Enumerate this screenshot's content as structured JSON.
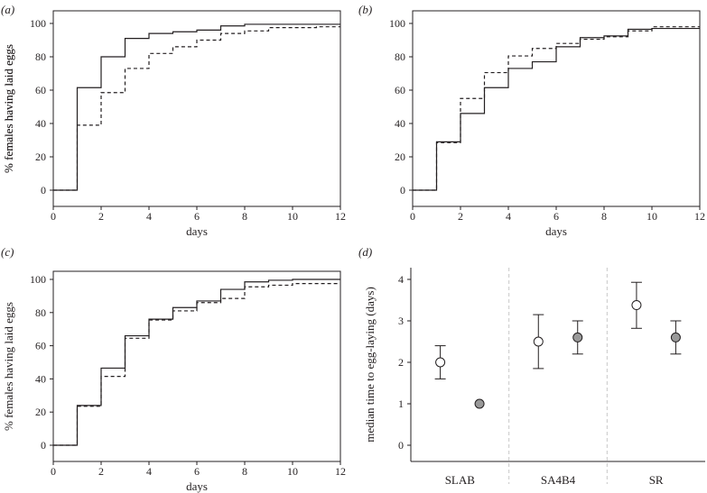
{
  "chart_data": [
    {
      "panel": "(a)",
      "type": "line",
      "step": true,
      "xlabel": "days",
      "ylabel": "% females having laid eggs",
      "xlim": [
        0,
        12
      ],
      "ylim": [
        0,
        100
      ],
      "xticks": [
        0,
        2,
        4,
        6,
        8,
        10,
        12
      ],
      "yticks": [
        0,
        20,
        40,
        60,
        80,
        100
      ],
      "x": [
        0,
        1,
        2,
        3,
        4,
        5,
        6,
        7,
        8,
        9,
        10,
        11,
        12
      ],
      "series": [
        {
          "name": "solid",
          "style": "solid",
          "values": [
            0,
            61.5,
            80,
            91,
            94,
            95,
            96,
            98.5,
            99.5,
            99.5,
            99.5,
            99.5,
            99.5
          ]
        },
        {
          "name": "dashed",
          "style": "dashed",
          "values": [
            0,
            39,
            58.5,
            73,
            82,
            86,
            90,
            94,
            95.5,
            97.5,
            97.5,
            98,
            98
          ]
        }
      ]
    },
    {
      "panel": "(b)",
      "type": "line",
      "step": true,
      "xlabel": "days",
      "ylabel": "% females having laid eggs",
      "xlim": [
        0,
        12
      ],
      "ylim": [
        0,
        100
      ],
      "xticks": [
        0,
        2,
        4,
        6,
        8,
        10,
        12
      ],
      "yticks": [
        0,
        20,
        40,
        60,
        80,
        100
      ],
      "x": [
        0,
        1,
        2,
        3,
        4,
        5,
        6,
        7,
        8,
        9,
        10,
        11,
        12
      ],
      "series": [
        {
          "name": "solid",
          "style": "solid",
          "values": [
            0,
            29,
            46,
            61.5,
            73,
            77,
            86,
            91.5,
            92.5,
            96.5,
            97,
            97,
            97
          ]
        },
        {
          "name": "dashed",
          "style": "dashed",
          "values": [
            0,
            28.5,
            55,
            70.5,
            80.5,
            85,
            88,
            90.5,
            92,
            95.5,
            98,
            98,
            98
          ]
        }
      ]
    },
    {
      "panel": "(c)",
      "type": "line",
      "step": true,
      "xlabel": "days",
      "ylabel": "% females having laid eggs",
      "xlim": [
        0,
        12
      ],
      "ylim": [
        0,
        100
      ],
      "xticks": [
        0,
        2,
        4,
        6,
        8,
        10,
        12
      ],
      "yticks": [
        0,
        20,
        40,
        60,
        80,
        100
      ],
      "x": [
        0,
        1,
        2,
        3,
        4,
        5,
        6,
        7,
        8,
        9,
        10,
        11,
        12
      ],
      "series": [
        {
          "name": "solid",
          "style": "solid",
          "values": [
            0,
            24,
            46.5,
            66,
            76,
            83,
            87,
            94,
            98.5,
            99.5,
            100,
            100,
            100
          ]
        },
        {
          "name": "dashed",
          "style": "dashed",
          "values": [
            0,
            23.5,
            41.5,
            64.5,
            75.5,
            81,
            86,
            88.5,
            95.5,
            96.5,
            97.5,
            97.5,
            97.5
          ]
        }
      ]
    },
    {
      "panel": "(d)",
      "type": "scatter",
      "xlabel": "",
      "ylabel": "median time to egg-laying (days)",
      "ylim": [
        0,
        4
      ],
      "yticks": [
        0,
        1,
        2,
        3,
        4
      ],
      "categories": [
        "SLAB",
        "SA4B4",
        "SR"
      ],
      "series": [
        {
          "name": "open",
          "marker": "open-circle",
          "values": [
            2.0,
            2.5,
            3.38
          ],
          "lower": [
            1.6,
            1.85,
            2.82
          ],
          "upper": [
            2.4,
            3.15,
            3.93
          ]
        },
        {
          "name": "filled",
          "marker": "grey-circle",
          "values": [
            1.0,
            2.6,
            2.6
          ],
          "lower": [
            null,
            2.2,
            2.2
          ],
          "upper": [
            null,
            3.0,
            3.0
          ]
        }
      ]
    }
  ],
  "colors": {
    "ink": "#231f20",
    "filled_marker": "#999999",
    "divider": "#c8c8c8"
  }
}
